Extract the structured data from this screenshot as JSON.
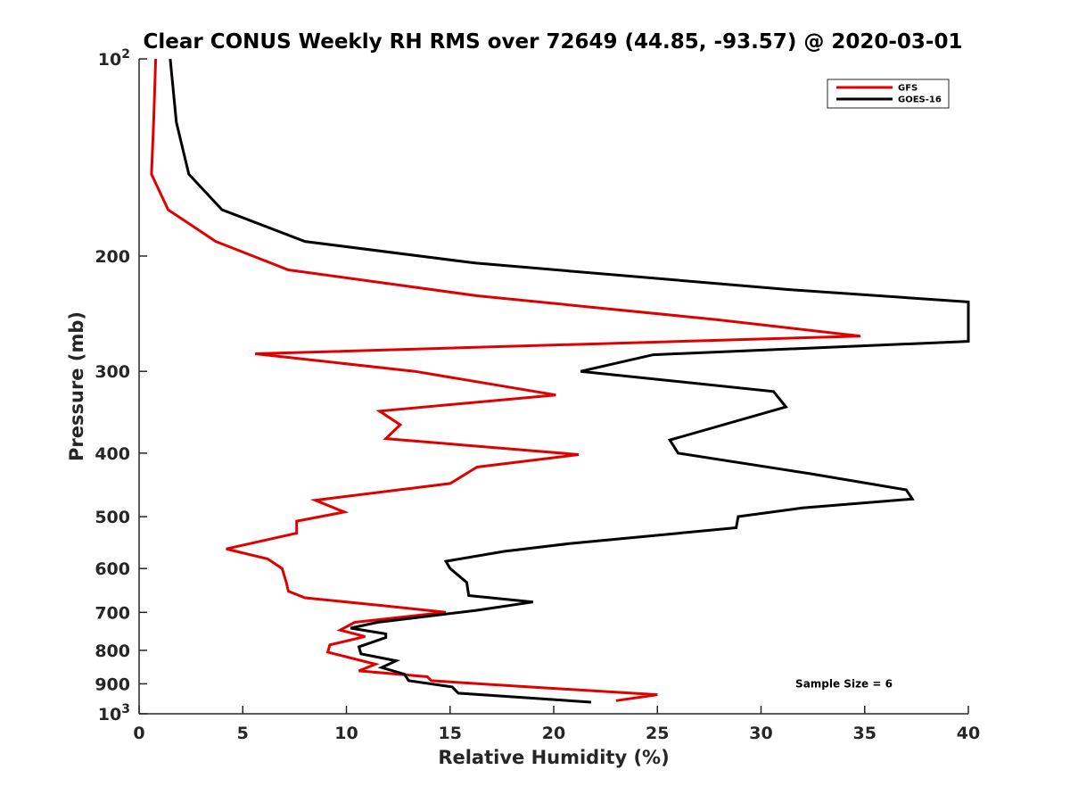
{
  "chart_data": {
    "type": "line",
    "title": "Clear CONUS Weekly RH RMS over 72649 (44.85, -93.57) @ 2020-03-01",
    "xlabel": "Relative Humidity (%)",
    "ylabel": "Pressure (mb)",
    "xlim": [
      0,
      40
    ],
    "ylim": [
      100,
      1000
    ],
    "yscale": "log",
    "y_reversed": true,
    "grid": false,
    "legend_position": "top-right",
    "x_ticks": [
      "0",
      "5",
      "10",
      "15",
      "20",
      "25",
      "30",
      "35",
      "40"
    ],
    "x_tick_values": [
      0,
      5,
      10,
      15,
      20,
      25,
      30,
      35,
      40
    ],
    "y_ticks": [
      {
        "value": 100,
        "base": "10",
        "exp": "2"
      },
      {
        "value": 200,
        "label": "200"
      },
      {
        "value": 300,
        "label": "300"
      },
      {
        "value": 400,
        "label": "400"
      },
      {
        "value": 500,
        "label": "500"
      },
      {
        "value": 600,
        "label": "600"
      },
      {
        "value": 700,
        "label": "700"
      },
      {
        "value": 800,
        "label": "800"
      },
      {
        "value": 900,
        "label": "900"
      },
      {
        "value": 1000,
        "base": "10",
        "exp": "3"
      }
    ],
    "series": [
      {
        "name": "GFS",
        "color": "#e00000",
        "points": [
          [
            0.8,
            100
          ],
          [
            0.7,
            125
          ],
          [
            0.6,
            150
          ],
          [
            1.4,
            170
          ],
          [
            3.7,
            190
          ],
          [
            7.2,
            210
          ],
          [
            16.3,
            230
          ],
          [
            27.8,
            250
          ],
          [
            34.8,
            265
          ],
          [
            5.6,
            282
          ],
          [
            13.3,
            300
          ],
          [
            20.1,
            326
          ],
          [
            11.6,
            345
          ],
          [
            12.6,
            362
          ],
          [
            11.9,
            380
          ],
          [
            21.2,
            402
          ],
          [
            16.3,
            420
          ],
          [
            15.0,
            445
          ],
          [
            8.5,
            472
          ],
          [
            9.9,
            492
          ],
          [
            7.6,
            508
          ],
          [
            7.6,
            530
          ],
          [
            4.2,
            560
          ],
          [
            6.2,
            580
          ],
          [
            6.9,
            600
          ],
          [
            7.1,
            630
          ],
          [
            7.2,
            650
          ],
          [
            8.0,
            665
          ],
          [
            12.0,
            685
          ],
          [
            14.8,
            700
          ],
          [
            10.4,
            725
          ],
          [
            9.7,
            745
          ],
          [
            10.9,
            762
          ],
          [
            9.2,
            785
          ],
          [
            9.1,
            805
          ],
          [
            11.4,
            840
          ],
          [
            10.6,
            860
          ],
          [
            13.9,
            878
          ],
          [
            14.1,
            890
          ],
          [
            18.8,
            910
          ],
          [
            25.0,
            935
          ],
          [
            23.0,
            955
          ]
        ]
      },
      {
        "name": "GOES-16",
        "color": "#000000",
        "points": [
          [
            1.5,
            100
          ],
          [
            1.8,
            125
          ],
          [
            2.4,
            150
          ],
          [
            4.0,
            170
          ],
          [
            8.0,
            190
          ],
          [
            16.2,
            205
          ],
          [
            31.3,
            225
          ],
          [
            40.0,
            235
          ],
          [
            40.0,
            270
          ],
          [
            24.8,
            283
          ],
          [
            21.3,
            300
          ],
          [
            30.6,
            322
          ],
          [
            31.2,
            340
          ],
          [
            25.6,
            382
          ],
          [
            26.0,
            400
          ],
          [
            32.4,
            430
          ],
          [
            37.0,
            455
          ],
          [
            37.3,
            470
          ],
          [
            32.0,
            485
          ],
          [
            28.9,
            500
          ],
          [
            28.8,
            520
          ],
          [
            20.7,
            550
          ],
          [
            17.6,
            565
          ],
          [
            14.8,
            585
          ],
          [
            15.0,
            600
          ],
          [
            15.8,
            630
          ],
          [
            15.9,
            660
          ],
          [
            19.0,
            675
          ],
          [
            16.3,
            695
          ],
          [
            11.5,
            725
          ],
          [
            10.2,
            740
          ],
          [
            11.9,
            755
          ],
          [
            11.9,
            765
          ],
          [
            10.6,
            790
          ],
          [
            10.7,
            810
          ],
          [
            12.4,
            830
          ],
          [
            11.7,
            850
          ],
          [
            12.8,
            870
          ],
          [
            13.0,
            890
          ],
          [
            15.1,
            910
          ],
          [
            15.4,
            930
          ],
          [
            21.8,
            960
          ]
        ]
      }
    ],
    "annotations": [
      {
        "text": "Sample Size = 6",
        "x": 34,
        "y": 900
      }
    ]
  }
}
